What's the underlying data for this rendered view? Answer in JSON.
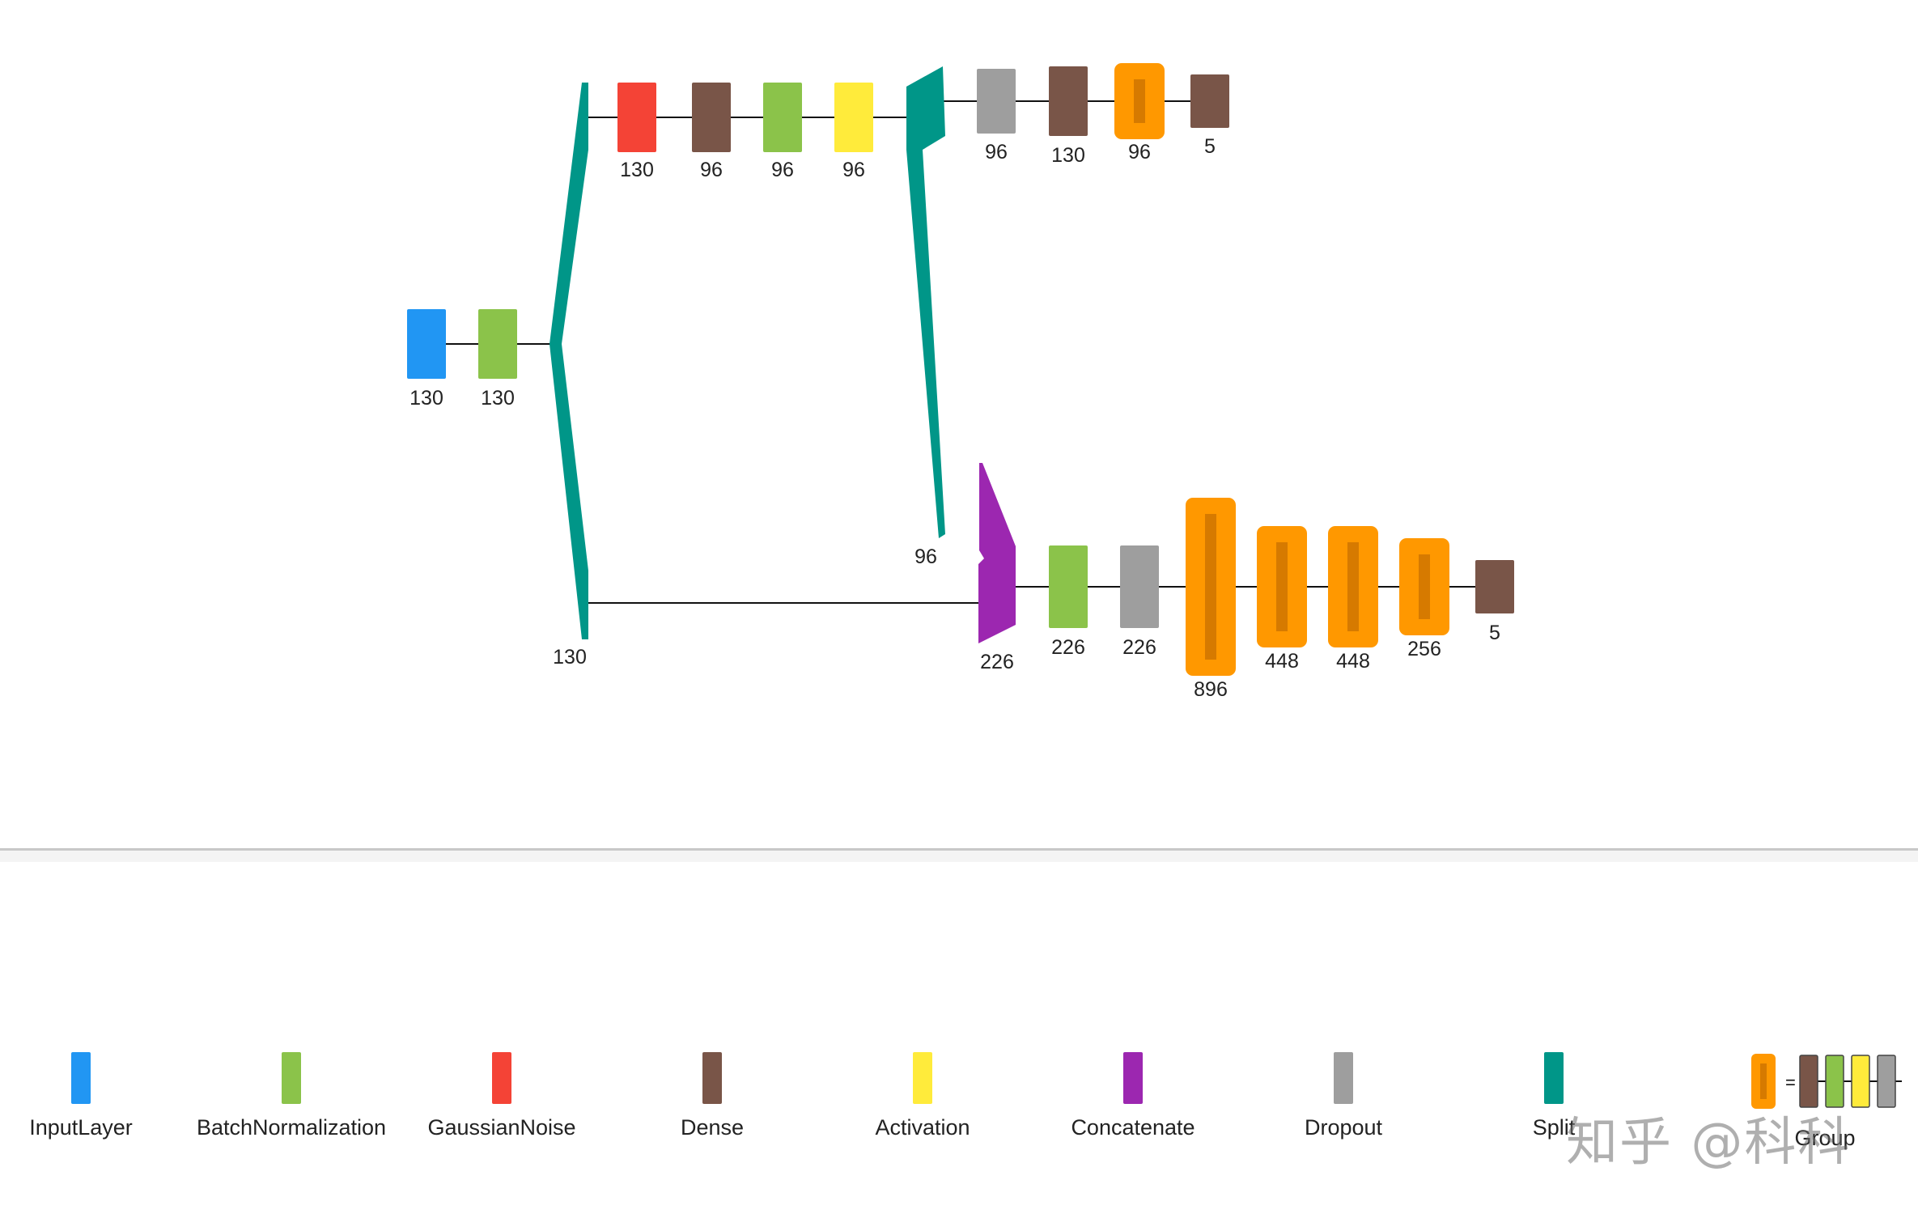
{
  "colors": {
    "InputLayer": "#2196F3",
    "BatchNormalization": "#8BC34A",
    "GaussianNoise": "#F44336",
    "Dense": "#795548",
    "Activation": "#FFEB3B",
    "Concatenate": "#9C27B0",
    "Dropout": "#9E9E9E",
    "Split": "#009688",
    "Group": "#FF9800",
    "GroupInner": "#D67A00"
  },
  "diagram": {
    "input_block": [
      {
        "type": "InputLayer",
        "units": "130"
      },
      {
        "type": "BatchNormalization",
        "units": "130"
      }
    ],
    "split_main": {
      "type": "Split",
      "units": "130"
    },
    "top_branch": [
      {
        "type": "GaussianNoise",
        "units": "130"
      },
      {
        "type": "Dense",
        "units": "96"
      },
      {
        "type": "BatchNormalization",
        "units": "96"
      },
      {
        "type": "Activation",
        "units": "96"
      }
    ],
    "split_top": {
      "type": "Split",
      "units": "96"
    },
    "top_head": [
      {
        "type": "Dropout",
        "units": "96"
      },
      {
        "type": "Dense",
        "units": "130"
      },
      {
        "type": "Group",
        "units": "96"
      },
      {
        "type": "Dense",
        "units": "5"
      }
    ],
    "concat": {
      "type": "Concatenate",
      "units": "226"
    },
    "bottom_head": [
      {
        "type": "BatchNormalization",
        "units": "226"
      },
      {
        "type": "Dropout",
        "units": "226"
      },
      {
        "type": "Group",
        "units": "896"
      },
      {
        "type": "Group",
        "units": "448"
      },
      {
        "type": "Group",
        "units": "448"
      },
      {
        "type": "Group",
        "units": "256"
      },
      {
        "type": "Dense",
        "units": "5"
      }
    ]
  },
  "legend": [
    {
      "key": "InputLayer",
      "label": "InputLayer"
    },
    {
      "key": "BatchNormalization",
      "label": "BatchNormalization"
    },
    {
      "key": "GaussianNoise",
      "label": "GaussianNoise"
    },
    {
      "key": "Dense",
      "label": "Dense"
    },
    {
      "key": "Activation",
      "label": "Activation"
    },
    {
      "key": "Concatenate",
      "label": "Concatenate"
    },
    {
      "key": "Dropout",
      "label": "Dropout"
    },
    {
      "key": "Split",
      "label": "Split"
    },
    {
      "key": "Group",
      "label": "Group"
    }
  ],
  "watermark": "知乎 @科科"
}
